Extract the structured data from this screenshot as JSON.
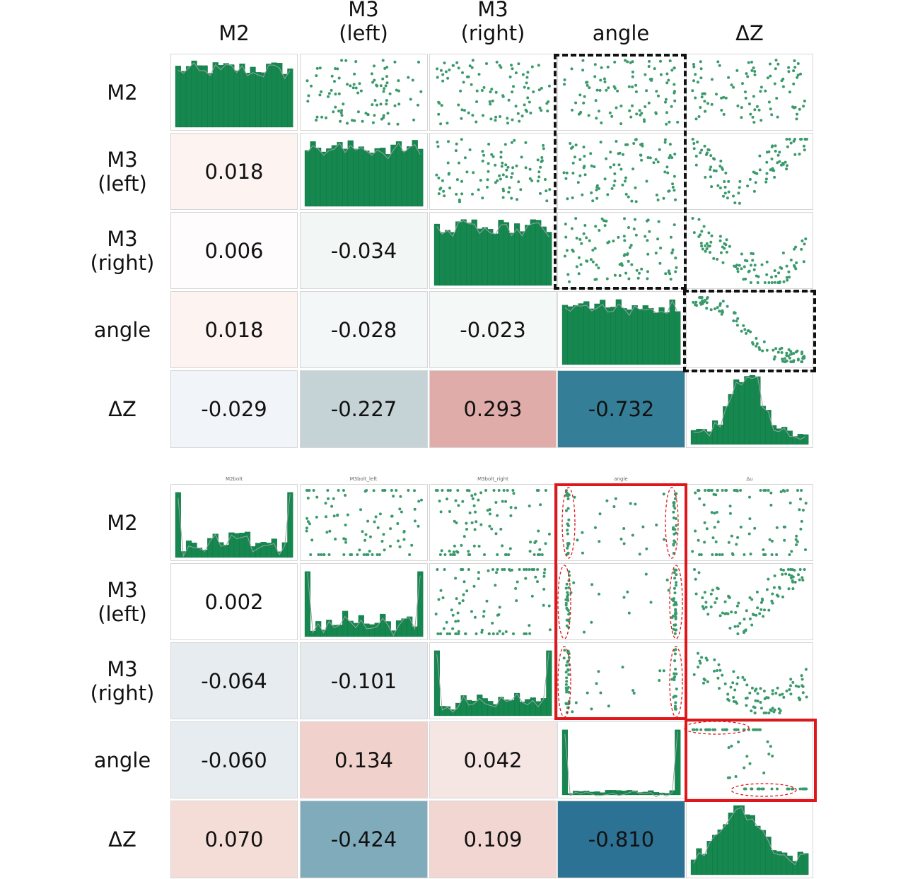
{
  "chart_data": [
    {
      "type": "pair-plot",
      "variables": [
        "M2",
        "M3\n(left)",
        "M3\n(right)",
        "angle",
        "ΔZ"
      ],
      "correlations": [
        {
          "row": "M3\n(left)",
          "col": "M2",
          "value": "0.018"
        },
        {
          "row": "M3\n(right)",
          "col": "M2",
          "value": "0.006"
        },
        {
          "row": "M3\n(right)",
          "col": "M3\n(left)",
          "value": "-0.034"
        },
        {
          "row": "angle",
          "col": "M2",
          "value": "0.018"
        },
        {
          "row": "angle",
          "col": "M3\n(left)",
          "value": "-0.028"
        },
        {
          "row": "angle",
          "col": "M3\n(right)",
          "value": "-0.023"
        },
        {
          "row": "ΔZ",
          "col": "M2",
          "value": "-0.029"
        },
        {
          "row": "ΔZ",
          "col": "M3\n(left)",
          "value": "-0.227"
        },
        {
          "row": "ΔZ",
          "col": "M3\n(right)",
          "value": "0.293"
        },
        {
          "row": "ΔZ",
          "col": "angle",
          "value": "-0.732"
        }
      ],
      "cell_colors": [
        "#fdf4f2",
        "#fefcfc",
        "#f2f7f5",
        "#fdf3f1",
        "#f3f7f8",
        "#f4f9f8",
        "#f1f5fa",
        "#c6d3d6",
        "#e0acaa",
        "#357e98"
      ],
      "highlight": "dashed-black",
      "mini_titles": []
    },
    {
      "type": "pair-plot",
      "variables": [
        "M2",
        "M3\n(left)",
        "M3\n(right)",
        "angle",
        "ΔZ"
      ],
      "correlations": [
        {
          "row": "M3\n(left)",
          "col": "M2",
          "value": "0.002"
        },
        {
          "row": "M3\n(right)",
          "col": "M2",
          "value": "-0.064"
        },
        {
          "row": "M3\n(right)",
          "col": "M3\n(left)",
          "value": "-0.101"
        },
        {
          "row": "angle",
          "col": "M2",
          "value": "-0.060"
        },
        {
          "row": "angle",
          "col": "M3\n(left)",
          "value": "0.134"
        },
        {
          "row": "angle",
          "col": "M3\n(right)",
          "value": "0.042"
        },
        {
          "row": "ΔZ",
          "col": "M2",
          "value": "0.070"
        },
        {
          "row": "ΔZ",
          "col": "M3\n(left)",
          "value": "-0.424"
        },
        {
          "row": "ΔZ",
          "col": "M3\n(right)",
          "value": "0.109"
        },
        {
          "row": "ΔZ",
          "col": "angle",
          "value": "-0.810"
        }
      ],
      "cell_colors": [
        "#ffffff",
        "#e7ecf0",
        "#e4eaed",
        "#e7ecf0",
        "#f1d1cb",
        "#f6e6e3",
        "#f4dcd7",
        "#80abbb",
        "#f2d6d1",
        "#2c7295"
      ],
      "highlight": "solid-red",
      "mini_titles": [
        "M2bolt",
        "M3bolt_left",
        "M3bolt_right",
        "angle",
        "Δu"
      ]
    }
  ],
  "colors": {
    "bar": "#15874f",
    "point": "#3a9a6b",
    "dash": "#111111",
    "red": "#e0161b"
  }
}
